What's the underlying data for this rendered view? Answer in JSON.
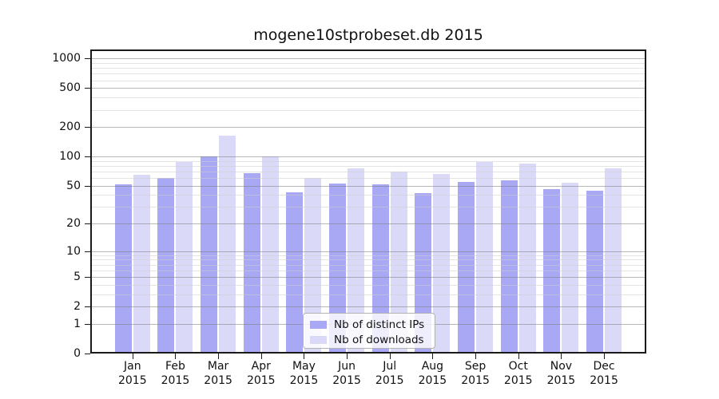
{
  "title": "mogene10stprobeset.db 2015",
  "chart_data": {
    "type": "bar",
    "title": "mogene10stprobeset.db 2015",
    "scale": "log1p",
    "categories": [
      "Jan",
      "Feb",
      "Mar",
      "Apr",
      "May",
      "Jun",
      "Jul",
      "Aug",
      "Sep",
      "Oct",
      "Nov",
      "Dec"
    ],
    "category_year": "2015",
    "series": [
      {
        "name": "Nb of distinct IPs",
        "color": "#a8a8f4",
        "values": [
          52,
          60,
          100,
          67,
          43,
          53,
          52,
          42,
          55,
          57,
          46,
          44
        ]
      },
      {
        "name": "Nb of downloads",
        "color": "#dadaf8",
        "values": [
          65,
          88,
          163,
          100,
          60,
          76,
          70,
          66,
          88,
          85,
          54,
          75
        ]
      }
    ],
    "y_ticks": [
      0,
      1,
      2,
      5,
      10,
      20,
      50,
      100,
      200,
      500,
      1000
    ],
    "ylim": [
      0,
      1000
    ],
    "grid": true,
    "legend_position": "bottom-center"
  },
  "colors": {
    "distinct_ips": "#a8a8f4",
    "downloads": "#dadaf8",
    "axis": "#1a1a1a",
    "major_grid": "#ababab",
    "minor_grid": "#e3e3e3"
  }
}
